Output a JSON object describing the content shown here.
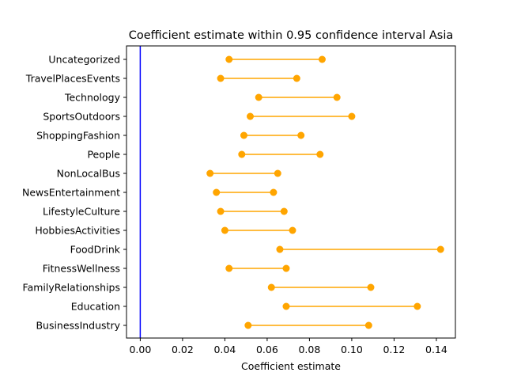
{
  "chart_data": {
    "type": "scatter",
    "title": "Coefficient estimate within 0.95 confidence interval Asia",
    "xlabel": "Coefficient estimate",
    "ylabel": "",
    "xlim": [
      -0.0065,
      0.149
    ],
    "xticks": [
      "0.00",
      "0.02",
      "0.04",
      "0.06",
      "0.08",
      "0.10",
      "0.12",
      "0.14"
    ],
    "reference_line": {
      "x": 0.0,
      "color": "#0000ff"
    },
    "series_color": "#ffa500",
    "grid": false,
    "categories": [
      "Uncategorized",
      "TravelPlacesEvents",
      "Technology",
      "SportsOutdoors",
      "ShoppingFashion",
      "People",
      "NonLocalBus",
      "NewsEntertainment",
      "LifestyleCulture",
      "HobbiesActivities",
      "FoodDrink",
      "FitnessWellness",
      "FamilyRelationships",
      "Education",
      "BusinessIndustry"
    ],
    "lower": [
      0.042,
      0.038,
      0.056,
      0.052,
      0.049,
      0.048,
      0.033,
      0.036,
      0.038,
      0.04,
      0.066,
      0.042,
      0.062,
      0.069,
      0.051
    ],
    "upper": [
      0.086,
      0.074,
      0.093,
      0.1,
      0.076,
      0.085,
      0.065,
      0.063,
      0.068,
      0.072,
      0.142,
      0.069,
      0.109,
      0.131,
      0.108
    ]
  }
}
